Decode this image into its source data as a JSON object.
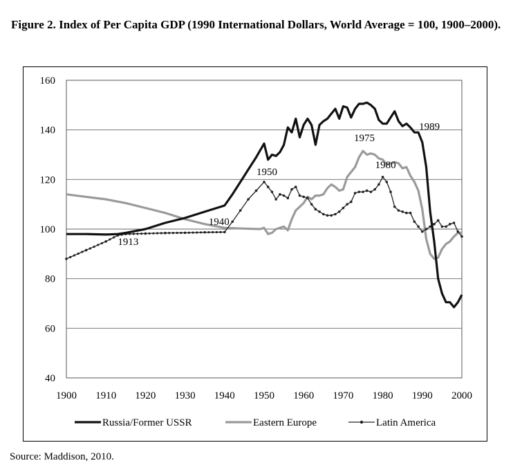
{
  "figure_title": "Figure 2.  Index of Per Capita GDP (1990 International Dollars, World Average = 100, 1900–2000).",
  "source": "Source: Maddison, 2010.",
  "chart_data": {
    "type": "line",
    "title": "Figure 2.  Index of Per Capita GDP (1990 International Dollars, World Average = 100, 1900–2000).",
    "xlabel": "",
    "ylabel": "",
    "xlim": [
      1900,
      2000
    ],
    "ylim": [
      40,
      160
    ],
    "grid": true,
    "legend_position": "bottom",
    "x_ticks": [
      1900,
      1910,
      1920,
      1930,
      1940,
      1950,
      1960,
      1970,
      1980,
      1990,
      2000
    ],
    "y_ticks": [
      40,
      60,
      80,
      100,
      120,
      140,
      160
    ],
    "annotations": [
      {
        "text": "1913",
        "x": 1913,
        "y": 98
      },
      {
        "text": "1940",
        "x": 1940,
        "y": 100
      },
      {
        "text": "1950",
        "x": 1950,
        "y": 119
      },
      {
        "text": "1975",
        "x": 1975,
        "y": 131
      },
      {
        "text": "1980",
        "x": 1980,
        "y": 121
      },
      {
        "text": "1989",
        "x": 1989,
        "y": 139
      }
    ],
    "series": [
      {
        "name": "Russia/Former USSR",
        "style": "thick-black",
        "color": "#111111",
        "points": [
          [
            1900,
            98
          ],
          [
            1905,
            98
          ],
          [
            1910,
            97.8
          ],
          [
            1913,
            98
          ],
          [
            1915,
            98.5
          ],
          [
            1920,
            100
          ],
          [
            1925,
            102.5
          ],
          [
            1930,
            104.5
          ],
          [
            1935,
            107
          ],
          [
            1940,
            109.5
          ],
          [
            1942,
            114
          ],
          [
            1944,
            119
          ],
          [
            1946,
            124
          ],
          [
            1948,
            129
          ],
          [
            1950,
            134.5
          ],
          [
            1951,
            128
          ],
          [
            1952,
            130
          ],
          [
            1953,
            129.5
          ],
          [
            1954,
            131
          ],
          [
            1955,
            134
          ],
          [
            1956,
            141
          ],
          [
            1957,
            139
          ],
          [
            1958,
            144.5
          ],
          [
            1959,
            137
          ],
          [
            1960,
            142
          ],
          [
            1961,
            144.5
          ],
          [
            1962,
            142
          ],
          [
            1963,
            134
          ],
          [
            1964,
            142
          ],
          [
            1965,
            143.5
          ],
          [
            1966,
            144.5
          ],
          [
            1967,
            146.5
          ],
          [
            1968,
            148.5
          ],
          [
            1969,
            144.5
          ],
          [
            1970,
            149.5
          ],
          [
            1971,
            149
          ],
          [
            1972,
            145
          ],
          [
            1973,
            148.5
          ],
          [
            1974,
            150.5
          ],
          [
            1975,
            150.5
          ],
          [
            1976,
            151
          ],
          [
            1977,
            150
          ],
          [
            1978,
            148.5
          ],
          [
            1979,
            144
          ],
          [
            1980,
            142.5
          ],
          [
            1981,
            142.5
          ],
          [
            1982,
            145
          ],
          [
            1983,
            147.5
          ],
          [
            1984,
            143.5
          ],
          [
            1985,
            141.5
          ],
          [
            1986,
            142.5
          ],
          [
            1987,
            141
          ],
          [
            1988,
            139
          ],
          [
            1989,
            139
          ],
          [
            1990,
            135
          ],
          [
            1991,
            125
          ],
          [
            1992,
            107
          ],
          [
            1993,
            95
          ],
          [
            1994,
            80
          ],
          [
            1995,
            74
          ],
          [
            1996,
            70.5
          ],
          [
            1997,
            70.5
          ],
          [
            1998,
            68.5
          ],
          [
            1999,
            70.5
          ],
          [
            2000,
            73.5
          ]
        ]
      },
      {
        "name": "Eastern Europe",
        "style": "thick-gray",
        "color": "#9a9a9a",
        "points": [
          [
            1900,
            114
          ],
          [
            1905,
            113
          ],
          [
            1910,
            112
          ],
          [
            1915,
            110.5
          ],
          [
            1920,
            108.5
          ],
          [
            1925,
            106.5
          ],
          [
            1930,
            104
          ],
          [
            1935,
            102
          ],
          [
            1940,
            100.5
          ],
          [
            1945,
            100.2
          ],
          [
            1949,
            100
          ],
          [
            1950,
            100.5
          ],
          [
            1951,
            98
          ],
          [
            1952,
            98.5
          ],
          [
            1953,
            100
          ],
          [
            1954,
            100.5
          ],
          [
            1955,
            101
          ],
          [
            1956,
            99.5
          ],
          [
            1957,
            104
          ],
          [
            1958,
            107.5
          ],
          [
            1959,
            109
          ],
          [
            1960,
            110.5
          ],
          [
            1961,
            113
          ],
          [
            1962,
            112
          ],
          [
            1963,
            113.5
          ],
          [
            1964,
            113.5
          ],
          [
            1965,
            114
          ],
          [
            1966,
            116.5
          ],
          [
            1967,
            118
          ],
          [
            1968,
            117
          ],
          [
            1969,
            115.5
          ],
          [
            1970,
            116
          ],
          [
            1971,
            121
          ],
          [
            1972,
            123
          ],
          [
            1973,
            125
          ],
          [
            1974,
            129
          ],
          [
            1975,
            131.5
          ],
          [
            1976,
            130
          ],
          [
            1977,
            130.5
          ],
          [
            1978,
            130
          ],
          [
            1979,
            128.5
          ],
          [
            1980,
            128
          ],
          [
            1981,
            126
          ],
          [
            1982,
            126.5
          ],
          [
            1983,
            127
          ],
          [
            1984,
            126.5
          ],
          [
            1985,
            124.5
          ],
          [
            1986,
            125
          ],
          [
            1987,
            121.5
          ],
          [
            1988,
            119
          ],
          [
            1989,
            115.5
          ],
          [
            1990,
            108
          ],
          [
            1991,
            96
          ],
          [
            1992,
            90
          ],
          [
            1993,
            88
          ],
          [
            1994,
            88.5
          ],
          [
            1995,
            92
          ],
          [
            1996,
            94
          ],
          [
            1997,
            95
          ],
          [
            1998,
            97
          ],
          [
            1999,
            98.5
          ],
          [
            2000,
            98.5
          ]
        ]
      },
      {
        "name": "Latin America",
        "style": "thin-dotted",
        "color": "#222222",
        "points": [
          [
            1900,
            88
          ],
          [
            1905,
            91.5
          ],
          [
            1910,
            95
          ],
          [
            1913,
            97.5
          ],
          [
            1915,
            98
          ],
          [
            1920,
            98.2
          ],
          [
            1925,
            98.4
          ],
          [
            1930,
            98.5
          ],
          [
            1935,
            98.7
          ],
          [
            1940,
            98.8
          ],
          [
            1942,
            103
          ],
          [
            1944,
            107.5
          ],
          [
            1946,
            112
          ],
          [
            1948,
            115.5
          ],
          [
            1950,
            119
          ],
          [
            1951,
            117
          ],
          [
            1952,
            115
          ],
          [
            1953,
            112
          ],
          [
            1954,
            114
          ],
          [
            1955,
            113.5
          ],
          [
            1956,
            112.5
          ],
          [
            1957,
            116
          ],
          [
            1958,
            117
          ],
          [
            1959,
            113.5
          ],
          [
            1960,
            113
          ],
          [
            1961,
            112.5
          ],
          [
            1962,
            110
          ],
          [
            1963,
            108
          ],
          [
            1964,
            107
          ],
          [
            1965,
            106
          ],
          [
            1966,
            105.5
          ],
          [
            1967,
            105.5
          ],
          [
            1968,
            106
          ],
          [
            1969,
            107
          ],
          [
            1970,
            108.5
          ],
          [
            1971,
            110
          ],
          [
            1972,
            111
          ],
          [
            1973,
            114.5
          ],
          [
            1974,
            115
          ],
          [
            1975,
            115
          ],
          [
            1976,
            115.5
          ],
          [
            1977,
            115
          ],
          [
            1978,
            116
          ],
          [
            1979,
            118
          ],
          [
            1980,
            121
          ],
          [
            1981,
            119
          ],
          [
            1982,
            115
          ],
          [
            1983,
            109
          ],
          [
            1984,
            107.5
          ],
          [
            1985,
            107
          ],
          [
            1986,
            106.5
          ],
          [
            1987,
            106.5
          ],
          [
            1988,
            103
          ],
          [
            1989,
            101
          ],
          [
            1990,
            99
          ],
          [
            1991,
            100
          ],
          [
            1992,
            101
          ],
          [
            1993,
            102
          ],
          [
            1994,
            103.5
          ],
          [
            1995,
            101
          ],
          [
            1996,
            101
          ],
          [
            1997,
            102
          ],
          [
            1998,
            102.5
          ],
          [
            1999,
            99
          ],
          [
            2000,
            97
          ]
        ]
      }
    ]
  }
}
